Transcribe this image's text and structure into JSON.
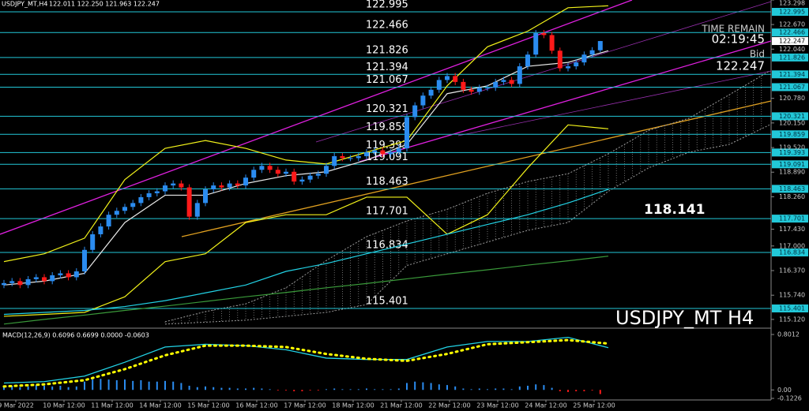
{
  "chart_data": {
    "type": "candlestick",
    "title": "USDJPY_MT,H4",
    "header": "122.011 122.250 121.963 122.247",
    "watermark": "USDJPY_MT H4",
    "time_label": "TIME REMAIN",
    "time_remain": "02:19:45",
    "bid_label": "Bid",
    "bid": 122.247,
    "annotation": 118.141,
    "up_color": "#2b8cf0",
    "down_color": "#ff1a1a",
    "level_color": "#22c8d8",
    "ylim": [
      114.916,
      123.298
    ],
    "yticks": [
      123.298,
      {
        "value": 122.67,
        "label": "122.670"
      },
      {
        "value": 122.04,
        "label": "122.040"
      },
      {
        "value": 120.78,
        "label": "120.780"
      },
      {
        "value": 120.15,
        "label": "120.150"
      },
      {
        "value": 119.52,
        "label": "119.520"
      },
      {
        "value": 118.89,
        "label": "118.890"
      },
      {
        "value": 118.26,
        "label": "118.260"
      },
      {
        "value": 117.43,
        "label": "117.430"
      },
      {
        "value": 117,
        "label": "117.000"
      },
      {
        "value": 116.37,
        "label": "116.370"
      },
      {
        "value": 115.74,
        "label": "115.740"
      },
      {
        "value": 115.12,
        "label": "115.120"
      }
    ],
    "levels": [
      122.995,
      122.466,
      121.826,
      121.394,
      121.067,
      120.321,
      119.859,
      119.393,
      119.091,
      118.463,
      117.701,
      116.834,
      115.401
    ],
    "time_labels": [
      "9 Mar 2022",
      "10 Mar 12:00",
      "11 Mar 12:00",
      "14 Mar 12:00",
      "15 Mar 12:00",
      "16 Mar 12:00",
      "17 Mar 12:00",
      "18 Mar 12:00",
      "21 Mar 12:00",
      "22 Mar 12:00",
      "23 Mar 12:00",
      "24 Mar 12:00",
      "25 Mar 12:00"
    ],
    "open": [
      116.0,
      116.05,
      116.1,
      116.0,
      116.15,
      116.2,
      116.1,
      116.25,
      116.3,
      116.2,
      116.35,
      116.9,
      117.3,
      117.5,
      117.8,
      117.9,
      118.0,
      118.1,
      118.25,
      118.35,
      118.4,
      118.55,
      118.6,
      118.5,
      117.75,
      118.1,
      118.45,
      118.55,
      118.5,
      118.6,
      118.55,
      118.75,
      118.95,
      119.05,
      118.95,
      118.85,
      118.9,
      118.65,
      118.7,
      118.8,
      118.85,
      119.05,
      119.3,
      119.25,
      119.25,
      119.3,
      119.4,
      119.45,
      119.35,
      119.4,
      119.5,
      120.3,
      120.6,
      120.85,
      121.0,
      121.25,
      121.35,
      121.2,
      121.0,
      120.95,
      121.05,
      121.05,
      121.2,
      121.25,
      121.15,
      121.6,
      121.9,
      122.45,
      122.4,
      122.0,
      121.55,
      121.6,
      121.7,
      121.9,
      122.011
    ],
    "high": [
      116.13,
      116.18,
      116.18,
      116.23,
      116.28,
      116.28,
      116.33,
      116.38,
      116.38,
      116.43,
      116.98,
      117.38,
      117.58,
      117.88,
      117.98,
      118.08,
      118.18,
      118.33,
      118.43,
      118.48,
      118.63,
      118.68,
      118.68,
      118.58,
      118.18,
      118.53,
      118.63,
      118.63,
      118.68,
      118.68,
      118.83,
      119.03,
      119.13,
      119.13,
      119.03,
      118.98,
      118.98,
      118.78,
      118.88,
      118.93,
      119.13,
      119.38,
      119.38,
      119.33,
      119.38,
      119.48,
      119.53,
      119.53,
      119.48,
      119.58,
      120.38,
      120.68,
      120.93,
      121.08,
      121.33,
      121.43,
      121.43,
      121.28,
      121.08,
      121.13,
      121.13,
      121.28,
      121.33,
      121.33,
      121.68,
      121.98,
      122.53,
      122.53,
      122.48,
      122.08,
      121.68,
      121.78,
      121.98,
      122.09,
      122.25
    ],
    "low": [
      115.92,
      115.97,
      115.92,
      115.92,
      116.07,
      116.02,
      116.02,
      116.17,
      116.12,
      116.12,
      116.27,
      116.82,
      117.22,
      117.42,
      117.72,
      117.82,
      117.92,
      118.02,
      118.17,
      118.27,
      118.32,
      118.47,
      118.42,
      117.67,
      117.67,
      118.02,
      118.37,
      118.42,
      118.42,
      118.47,
      118.47,
      118.67,
      118.87,
      118.87,
      118.77,
      118.77,
      118.57,
      118.57,
      118.62,
      118.72,
      118.77,
      118.97,
      119.17,
      119.17,
      119.17,
      119.22,
      119.32,
      119.27,
      119.27,
      119.32,
      119.42,
      120.22,
      120.52,
      120.77,
      120.92,
      121.17,
      121.12,
      120.92,
      120.87,
      120.87,
      120.97,
      120.97,
      121.12,
      121.07,
      121.07,
      121.52,
      121.82,
      122.32,
      121.92,
      121.47,
      121.47,
      121.52,
      121.62,
      121.82,
      121.963
    ],
    "close": [
      116.05,
      116.1,
      116.0,
      116.15,
      116.2,
      116.1,
      116.25,
      116.3,
      116.2,
      116.35,
      116.9,
      117.3,
      117.5,
      117.8,
      117.9,
      118.0,
      118.1,
      118.25,
      118.35,
      118.4,
      118.55,
      118.6,
      118.5,
      117.75,
      118.1,
      118.45,
      118.55,
      118.5,
      118.6,
      118.55,
      118.75,
      118.95,
      119.05,
      118.95,
      118.85,
      118.9,
      118.65,
      118.7,
      118.8,
      118.85,
      119.05,
      119.3,
      119.25,
      119.25,
      119.3,
      119.4,
      119.45,
      119.35,
      119.4,
      119.5,
      120.3,
      120.6,
      120.85,
      121.0,
      121.25,
      121.35,
      121.2,
      121.0,
      120.95,
      121.05,
      121.05,
      121.2,
      121.25,
      121.15,
      121.6,
      121.9,
      122.45,
      122.4,
      122.0,
      121.55,
      121.6,
      121.7,
      121.9,
      122.011,
      122.247
    ],
    "indicators": [
      {
        "color": "#f2f21a",
        "x": [
          0,
          5,
          10,
          15,
          20,
          25,
          30,
          35,
          40,
          45,
          50,
          55,
          60,
          65,
          70,
          75
        ],
        "values": [
          116.6,
          116.8,
          117.2,
          118.7,
          119.5,
          119.7,
          119.5,
          119.2,
          119.1,
          119.4,
          119.7,
          121.1,
          122.1,
          122.5,
          123.1,
          123.15
        ]
      },
      {
        "color": "#f2f21a",
        "x": [
          0,
          5,
          10,
          15,
          20,
          25,
          30,
          35,
          40,
          45,
          50,
          55,
          60,
          65,
          70,
          75
        ],
        "values": [
          115.2,
          115.25,
          115.3,
          115.7,
          116.6,
          116.8,
          117.6,
          117.8,
          117.8,
          118.25,
          118.25,
          117.3,
          117.8,
          119.0,
          120.1,
          120.0
        ]
      },
      {
        "color": "#e8e8e8",
        "x": [
          0,
          5,
          10,
          15,
          20,
          25,
          30,
          35,
          40,
          45,
          50,
          55,
          60,
          65,
          70,
          75
        ],
        "values": [
          116.0,
          116.1,
          116.3,
          117.6,
          118.3,
          118.3,
          118.6,
          118.8,
          118.9,
          119.2,
          119.6,
          120.9,
          121.1,
          121.6,
          121.7,
          122.0
        ]
      },
      {
        "color": "#22d3e6",
        "x": [
          0,
          5,
          10,
          15,
          20,
          25,
          30,
          35,
          40,
          45,
          50,
          55,
          60,
          65,
          70,
          75
        ],
        "values": [
          115.25,
          115.3,
          115.35,
          115.45,
          115.6,
          115.8,
          116.0,
          116.35,
          116.55,
          116.8,
          117.05,
          117.3,
          117.55,
          117.8,
          118.1,
          118.45
        ]
      },
      {
        "color": "#3a9a3a",
        "x": [
          0,
          5,
          10,
          15,
          20,
          25,
          30,
          35,
          40,
          45,
          50,
          55,
          60,
          65,
          70,
          75
        ],
        "values": [
          115.0,
          115.12,
          115.23,
          115.35,
          115.46,
          115.58,
          115.7,
          115.81,
          115.93,
          116.04,
          116.16,
          116.28,
          116.39,
          116.51,
          116.62,
          116.74
        ]
      }
    ],
    "cloud": {
      "color": "#9a9a9a",
      "x": [
        20,
        25,
        30,
        35,
        40,
        45,
        50,
        55,
        60,
        65,
        70,
        75,
        80,
        85,
        90,
        95
      ],
      "upper": [
        115.06,
        115.32,
        115.52,
        115.93,
        116.63,
        117.24,
        117.64,
        117.94,
        118.35,
        118.65,
        118.85,
        119.36,
        119.96,
        120.27,
        120.87,
        121.48
      ],
      "lower": [
        115.0,
        115.05,
        115.1,
        115.2,
        115.3,
        115.5,
        116.5,
        116.8,
        117.1,
        117.4,
        117.6,
        118.4,
        119.0,
        119.4,
        119.6,
        120.1
      ]
    },
    "macd": {
      "label": "MACD(12,26,9) 0.6096 0.6699 0.0000 -0.0603",
      "ylim": [
        -0.1226,
        0.8012
      ],
      "yticks": [
        0.8012,
        {
          "value": 0,
          "label": "0.00"
        },
        -0.1226
      ],
      "x": [
        0,
        5,
        10,
        15,
        20,
        25,
        30,
        35,
        40,
        45,
        50,
        55,
        60,
        65,
        70,
        75
      ],
      "main": [
        0.1,
        0.12,
        0.2,
        0.4,
        0.62,
        0.66,
        0.64,
        0.58,
        0.46,
        0.44,
        0.44,
        0.62,
        0.7,
        0.7,
        0.76,
        0.61
      ],
      "signal": [
        0.05,
        0.08,
        0.14,
        0.3,
        0.5,
        0.64,
        0.64,
        0.62,
        0.52,
        0.45,
        0.42,
        0.52,
        0.66,
        0.69,
        0.72,
        0.67
      ],
      "main_color": "#22d3e6",
      "signal_color": "#ffff00",
      "histogram": [
        0.05,
        0.06,
        0.04,
        0.05,
        0.07,
        0.06,
        0.05,
        0.06,
        0.04,
        0.05,
        0.12,
        0.15,
        0.16,
        0.15,
        0.14,
        0.15,
        0.13,
        0.14,
        0.12,
        0.12,
        0.13,
        0.12,
        0.1,
        0.06,
        0.04,
        0.05,
        0.04,
        0.03,
        0.03,
        0.02,
        0.02,
        0.03,
        0.02,
        0.01,
        -0.01,
        -0.01,
        -0.02,
        -0.02,
        -0.01,
        -0.01,
        0.01,
        0.02,
        0.01,
        0.01,
        0.01,
        0.02,
        0.01,
        0.01,
        0.01,
        0.02,
        0.1,
        0.12,
        0.11,
        0.1,
        0.08,
        0.07,
        0.05,
        0.02,
        0.01,
        0.02,
        0.01,
        0.02,
        0.02,
        0.01,
        0.05,
        0.06,
        0.08,
        0.07,
        0.03,
        -0.02,
        -0.03,
        -0.02,
        -0.02,
        -0.01,
        -0.0603
      ]
    }
  }
}
